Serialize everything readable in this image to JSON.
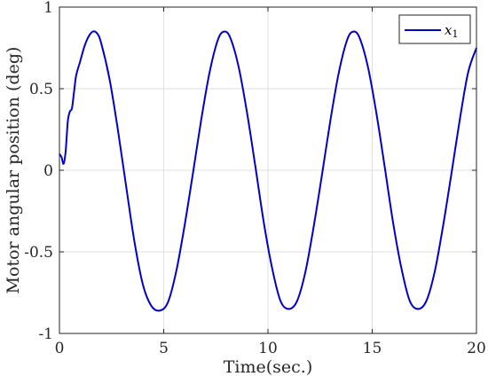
{
  "chart_data": {
    "type": "line",
    "xlabel": "Time(sec.)",
    "ylabel": "Motor angular position (deg)",
    "xlim": [
      0,
      20
    ],
    "ylim": [
      -1,
      1
    ],
    "x_ticks": [
      0,
      5,
      10,
      15,
      20
    ],
    "y_ticks": [
      -1,
      -0.5,
      0,
      0.5,
      1
    ],
    "x_tick_labels": [
      "0",
      "5",
      "10",
      "15",
      "20"
    ],
    "y_tick_labels": [
      "-1",
      "-0.5",
      "0",
      "0.5",
      "1"
    ],
    "grid": true,
    "legend_position": "top-right",
    "series": [
      {
        "name": "x_1",
        "legend_main": "x",
        "legend_sub": "1",
        "color": "#0000cc",
        "x": [
          0,
          0.1,
          0.2,
          0.3,
          0.4,
          0.5,
          0.6,
          0.7,
          0.8,
          1.0,
          1.2,
          1.4,
          1.6,
          1.8,
          2.0,
          2.4,
          2.8,
          3.2,
          3.6,
          4.0,
          4.4,
          4.8,
          5.2,
          5.6,
          6.0,
          6.4,
          6.8,
          7.2,
          7.6,
          7.9,
          8.2,
          8.6,
          9.0,
          9.4,
          9.8,
          10.2,
          10.6,
          11.0,
          11.4,
          11.8,
          12.2,
          12.6,
          13.0,
          13.4,
          13.8,
          14.1,
          14.4,
          14.8,
          15.2,
          15.6,
          16.0,
          16.4,
          16.8,
          17.2,
          17.6,
          18.0,
          18.4,
          18.8,
          19.2,
          19.6,
          20.0
        ],
        "y": [
          0.1,
          0.08,
          0.04,
          0.12,
          0.3,
          0.36,
          0.38,
          0.48,
          0.58,
          0.67,
          0.76,
          0.82,
          0.85,
          0.84,
          0.78,
          0.56,
          0.25,
          -0.1,
          -0.44,
          -0.7,
          -0.83,
          -0.86,
          -0.81,
          -0.62,
          -0.34,
          -0.02,
          0.31,
          0.6,
          0.8,
          0.85,
          0.81,
          0.63,
          0.35,
          0.02,
          -0.32,
          -0.6,
          -0.8,
          -0.85,
          -0.8,
          -0.62,
          -0.34,
          -0.02,
          0.31,
          0.6,
          0.8,
          0.85,
          0.81,
          0.63,
          0.35,
          0.02,
          -0.32,
          -0.6,
          -0.8,
          -0.85,
          -0.8,
          -0.62,
          -0.34,
          -0.02,
          0.31,
          0.6,
          0.75
        ]
      }
    ]
  }
}
